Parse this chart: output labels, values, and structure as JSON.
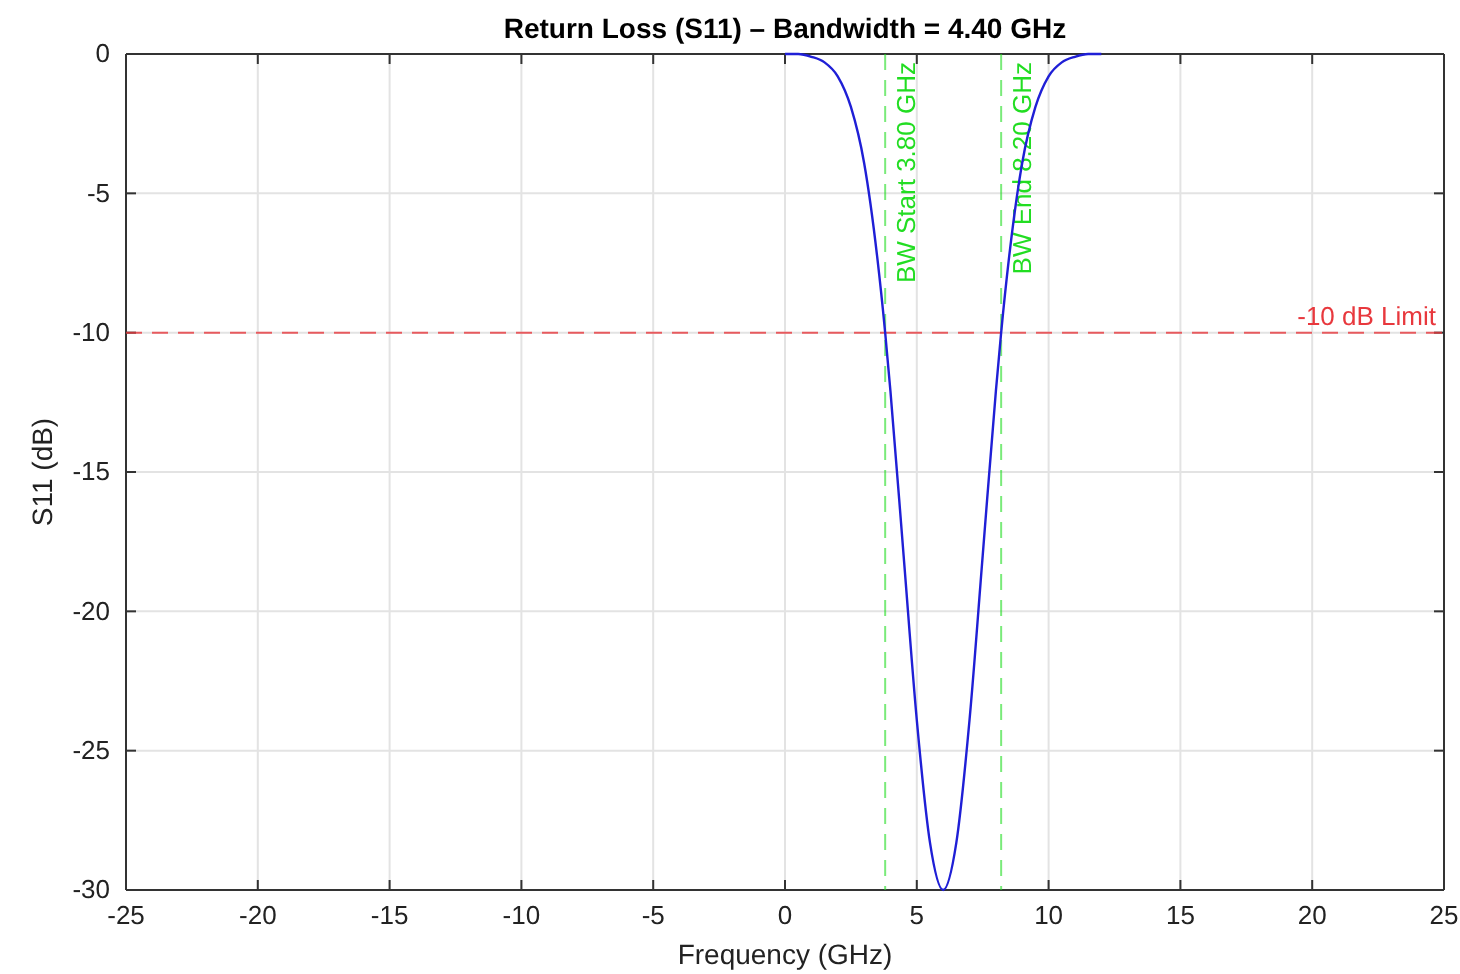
{
  "chart_data": {
    "type": "line",
    "title": "Return Loss (S11) – Bandwidth = 4.40 GHz",
    "xlabel": "Frequency (GHz)",
    "ylabel": "S11 (dB)",
    "x": [
      0,
      0.5,
      1,
      1.5,
      2,
      2.5,
      3,
      3.5,
      3.8,
      4,
      4.5,
      5,
      5.5,
      6,
      6.5,
      7,
      7.5,
      8,
      8.2,
      8.5,
      9,
      9.5,
      10,
      10.5,
      11,
      11.5,
      12
    ],
    "series": [
      {
        "color": "#1f1fd6",
        "values": [
          0,
          0,
          -0.1,
          -0.3,
          -0.8,
          -1.9,
          -3.9,
          -7.3,
          -10,
          -12.1,
          -18.0,
          -23.9,
          -28.3,
          -30,
          -28.3,
          -23.9,
          -18.0,
          -12.1,
          -10,
          -7.3,
          -3.9,
          -1.9,
          -0.8,
          -0.3,
          -0.1,
          0,
          0
        ]
      }
    ],
    "xlim": [
      -25,
      25
    ],
    "xticks": [
      -25,
      -20,
      -15,
      -10,
      -5,
      0,
      5,
      10,
      15,
      20,
      25
    ],
    "ylim": [
      -30,
      0
    ],
    "yticks": [
      -30,
      -25,
      -20,
      -15,
      -10,
      -5,
      0
    ],
    "grid": true,
    "line_style": "solid",
    "marker": "none",
    "ref_lines": [
      {
        "axis": "y",
        "value": -10,
        "label": "-10 dB Limit",
        "color": "#e8383d",
        "line_style": "dashed"
      },
      {
        "axis": "x",
        "value": 3.8,
        "label": "BW Start 3.80 GHz",
        "color": "#22dd22",
        "line_style": "dashed"
      },
      {
        "axis": "x",
        "value": 8.2,
        "label": "BW End 8.20 GHz",
        "color": "#22dd22",
        "line_style": "dashed"
      }
    ]
  }
}
